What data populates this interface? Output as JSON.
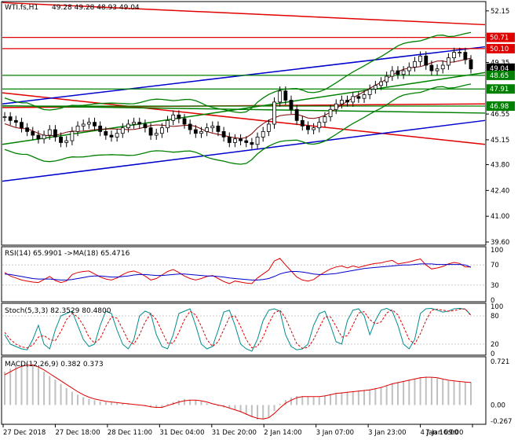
{
  "chart_data": [
    {
      "type": "candlestick",
      "title": "WTI.fs,H1",
      "ohlc_header": "49.28 49.28 48.93 49.04",
      "yticks": [
        "52.15",
        "50.71",
        "50.10",
        "49.35",
        "49.04",
        "48.65",
        "47.91",
        "46.98",
        "46.55",
        "45.15",
        "43.80",
        "42.40",
        "41.00",
        "39.60"
      ],
      "ylim": [
        39.6,
        52.4
      ],
      "price_tags": [
        {
          "value": 50.71,
          "text": "50.71",
          "color": "#e00000"
        },
        {
          "value": 50.1,
          "text": "50.10",
          "color": "#e00000"
        },
        {
          "value": 49.04,
          "text": "49.04",
          "color": "#000000"
        },
        {
          "value": 48.65,
          "text": "48.65",
          "color": "#008000"
        },
        {
          "value": 47.91,
          "text": "47.91",
          "color": "#008000"
        },
        {
          "value": 46.98,
          "text": "46.98",
          "color": "#008000"
        }
      ],
      "horizontal_lines": [
        {
          "value": 50.71,
          "color": "#e00000"
        },
        {
          "value": 50.1,
          "color": "#e00000"
        },
        {
          "value": 48.65,
          "color": "#008000"
        },
        {
          "value": 47.91,
          "color": "#008000"
        },
        {
          "value": 46.98,
          "color": "#008000"
        }
      ],
      "close_series": [
        46.4,
        46.2,
        46.1,
        45.8,
        45.6,
        45.4,
        45.2,
        45.4,
        45.7,
        45.3,
        45.0,
        45.1,
        45.6,
        45.9,
        46.0,
        46.1,
        45.9,
        45.6,
        45.4,
        45.3,
        45.5,
        45.8,
        46.0,
        46.1,
        46.0,
        45.8,
        45.4,
        45.5,
        45.8,
        46.2,
        46.5,
        46.3,
        46.0,
        45.7,
        45.5,
        45.6,
        45.8,
        45.9,
        45.6,
        45.3,
        45.0,
        45.2,
        45.1,
        45.0,
        44.9,
        45.3,
        45.6,
        46.0,
        47.2,
        47.8,
        47.3,
        46.8,
        46.2,
        45.9,
        45.7,
        45.8,
        46.1,
        46.4,
        46.8,
        47.1,
        47.3,
        47.2,
        47.5,
        47.4,
        47.6,
        47.9,
        48.1,
        48.3,
        48.6,
        48.9,
        48.7,
        48.9,
        49.1,
        49.4,
        49.7,
        49.2,
        48.9,
        49.0,
        49.2,
        49.6,
        49.9,
        49.9,
        49.5,
        49.0
      ]
    },
    {
      "type": "line",
      "title": "RSI(14) 65.9901 ->MA(18) 65.4716",
      "yticks": [
        "100",
        "70",
        "30",
        "0"
      ],
      "ylim": [
        0,
        100
      ],
      "rsi_series": [
        55,
        48,
        44,
        40,
        38,
        36,
        35,
        41,
        47,
        39,
        35,
        38,
        51,
        55,
        57,
        58,
        52,
        46,
        42,
        40,
        44,
        51,
        56,
        58,
        54,
        48,
        40,
        43,
        50,
        57,
        61,
        55,
        48,
        43,
        40,
        43,
        47,
        49,
        43,
        37,
        33,
        38,
        36,
        34,
        33,
        44,
        52,
        60,
        78,
        83,
        70,
        58,
        46,
        40,
        38,
        41,
        49,
        56,
        62,
        66,
        68,
        64,
        68,
        65,
        68,
        71,
        73,
        74,
        77,
        79,
        72,
        74,
        76,
        79,
        82,
        70,
        62,
        64,
        67,
        72,
        75,
        73,
        66,
        66
      ],
      "ma_series": [
        52,
        51,
        49,
        47,
        45,
        43,
        42,
        42,
        42,
        41,
        40,
        40,
        41,
        43,
        45,
        47,
        48,
        48,
        47,
        46,
        46,
        47,
        48,
        50,
        51,
        51,
        50,
        49,
        49,
        50,
        51,
        52,
        52,
        51,
        50,
        49,
        48,
        48,
        47,
        46,
        44,
        43,
        42,
        41,
        40,
        40,
        41,
        43,
        47,
        52,
        55,
        57,
        57,
        56,
        54,
        52,
        51,
        51,
        52,
        53,
        55,
        57,
        59,
        61,
        63,
        64,
        65,
        66,
        67,
        68,
        69,
        70,
        70,
        71,
        72,
        72,
        72,
        71,
        71,
        71,
        71,
        71,
        70,
        65.5
      ]
    },
    {
      "type": "line",
      "title": "Stoch(5,3,3) 82.3529 80.4800",
      "yticks": [
        "100",
        "80",
        "20",
        "0"
      ],
      "ylim": [
        0,
        100
      ],
      "k_series": [
        40,
        20,
        15,
        10,
        8,
        30,
        60,
        20,
        10,
        50,
        80,
        85,
        90,
        60,
        30,
        15,
        20,
        60,
        90,
        85,
        50,
        20,
        10,
        30,
        80,
        90,
        85,
        40,
        15,
        10,
        40,
        85,
        90,
        95,
        60,
        20,
        10,
        15,
        50,
        88,
        92,
        60,
        20,
        10,
        5,
        30,
        70,
        92,
        95,
        90,
        40,
        15,
        8,
        10,
        20,
        60,
        85,
        90,
        60,
        25,
        20,
        70,
        92,
        95,
        80,
        40,
        70,
        92,
        96,
        90,
        60,
        20,
        10,
        30,
        85,
        95,
        96,
        92,
        88,
        90,
        95,
        96,
        94,
        82
      ],
      "d_series": [
        45,
        30,
        20,
        14,
        12,
        18,
        35,
        38,
        30,
        27,
        47,
        72,
        85,
        78,
        60,
        35,
        22,
        32,
        57,
        78,
        75,
        52,
        27,
        20,
        40,
        67,
        85,
        72,
        47,
        22,
        22,
        45,
        72,
        90,
        82,
        58,
        30,
        15,
        25,
        51,
        77,
        80,
        57,
        30,
        12,
        15,
        35,
        64,
        86,
        92,
        75,
        48,
        21,
        11,
        13,
        30,
        55,
        78,
        78,
        58,
        35,
        38,
        61,
        86,
        89,
        72,
        63,
        67,
        86,
        93,
        82,
        57,
        30,
        20,
        42,
        70,
        92,
        94,
        92,
        90,
        91,
        94,
        95,
        80.5
      ]
    },
    {
      "type": "bar",
      "title": "MACD(12,26,9) 0.382 0.373",
      "yticks": [
        "0.721",
        "0.00",
        "-0.267"
      ],
      "ylim": [
        -0.267,
        0.721
      ],
      "histogram": [
        0.55,
        0.6,
        0.65,
        0.68,
        0.7,
        0.68,
        0.62,
        0.55,
        0.48,
        0.42,
        0.35,
        0.28,
        0.22,
        0.17,
        0.13,
        0.1,
        0.08,
        0.06,
        0.05,
        0.04,
        0.03,
        0.02,
        0.02,
        0.01,
        0.0,
        -0.02,
        -0.04,
        -0.05,
        -0.05,
        0.02,
        0.05,
        0.08,
        0.1,
        0.09,
        0.08,
        0.06,
        0.03,
        0.0,
        -0.02,
        -0.04,
        -0.06,
        -0.08,
        -0.12,
        -0.16,
        -0.2,
        -0.24,
        -0.24,
        -0.2,
        -0.1,
        0.02,
        0.08,
        0.12,
        0.15,
        0.15,
        0.14,
        0.13,
        0.13,
        0.15,
        0.18,
        0.2,
        0.21,
        0.22,
        0.23,
        0.24,
        0.25,
        0.26,
        0.28,
        0.3,
        0.33,
        0.36,
        0.38,
        0.4,
        0.42,
        0.44,
        0.46,
        0.47,
        0.46,
        0.44,
        0.42,
        0.4,
        0.39,
        0.39,
        0.38,
        0.38
      ],
      "signal": [
        0.5,
        0.55,
        0.6,
        0.64,
        0.66,
        0.66,
        0.63,
        0.58,
        0.52,
        0.46,
        0.4,
        0.34,
        0.28,
        0.22,
        0.17,
        0.13,
        0.1,
        0.08,
        0.06,
        0.05,
        0.04,
        0.03,
        0.02,
        0.01,
        0.0,
        -0.01,
        -0.03,
        -0.04,
        -0.04,
        -0.01,
        0.02,
        0.05,
        0.07,
        0.08,
        0.08,
        0.07,
        0.05,
        0.02,
        0.0,
        -0.02,
        -0.05,
        -0.08,
        -0.11,
        -0.15,
        -0.19,
        -0.22,
        -0.23,
        -0.21,
        -0.14,
        -0.05,
        0.03,
        0.08,
        0.12,
        0.14,
        0.14,
        0.14,
        0.14,
        0.15,
        0.17,
        0.19,
        0.2,
        0.21,
        0.22,
        0.23,
        0.24,
        0.25,
        0.27,
        0.29,
        0.32,
        0.35,
        0.37,
        0.39,
        0.41,
        0.43,
        0.45,
        0.46,
        0.46,
        0.45,
        0.43,
        0.41,
        0.4,
        0.39,
        0.38,
        0.373
      ]
    }
  ],
  "x_labels": [
    "27 Dec 2018",
    "27 Dec 18:00",
    "28 Dec 11:00",
    "31 Dec 04:00",
    "31 Dec 20:00",
    "2 Jan 14:00",
    "3 Jan 07:00",
    "3 Jan 23:00",
    "4 Jan 16:00",
    "7 Jan 09:00"
  ],
  "colors": {
    "up": "#000",
    "down": "#000",
    "rsi": "#e00000",
    "rsi_ma": "#0000cc",
    "stoch_k": "#008b8b",
    "stoch_d": "#e00000",
    "macd_hist": "#c0c0c0",
    "macd_signal": "#e00000",
    "bb": "#008000",
    "trend_red": "#e00000",
    "trend_blue": "#0000cc",
    "trend_green": "#008000"
  }
}
